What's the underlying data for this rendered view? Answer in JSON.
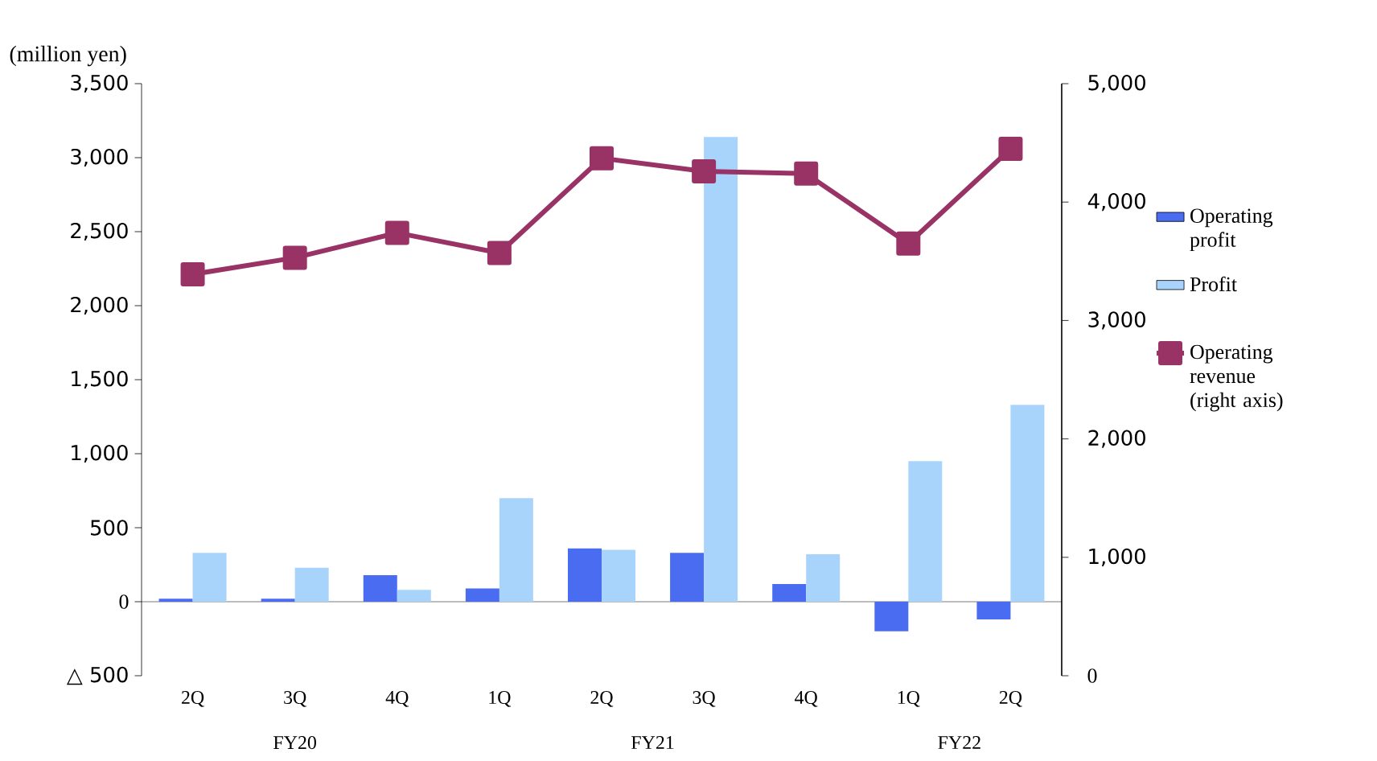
{
  "chart_data": {
    "type": "bar",
    "ylabel": "(million yen)",
    "categories": [
      "2Q",
      "3Q",
      "4Q",
      "1Q",
      "2Q",
      "3Q",
      "4Q",
      "1Q",
      "2Q"
    ],
    "series": [
      {
        "name": "Operating profit",
        "color": "#4a6cf0",
        "values": [
          20,
          20,
          180,
          90,
          360,
          330,
          120,
          -200,
          -120
        ]
      },
      {
        "name": "Profit",
        "color": "#a8d4fc",
        "values": [
          330,
          230,
          80,
          700,
          350,
          3140,
          320,
          950,
          1330
        ]
      },
      {
        "name": "Operating revenue (right axis)",
        "type": "line",
        "axis": "y2",
        "color": "#993366",
        "values": [
          3390,
          3530,
          3740,
          3570,
          4370,
          4260,
          4240,
          3650,
          4450
        ]
      }
    ],
    "ylim": [
      -500,
      3500
    ],
    "yticks": [
      {
        "value": -500,
        "label": "△ 500"
      },
      0,
      {
        "value": 500,
        "label": "500"
      },
      {
        "value": 1000,
        "label": "1,000"
      },
      {
        "value": 1500,
        "label": "1,500"
      },
      {
        "value": 2000,
        "label": "2,000"
      },
      {
        "value": 2500,
        "label": "2,500"
      },
      {
        "value": 3000,
        "label": "3,000"
      },
      {
        "value": 3500,
        "label": "3,500"
      }
    ],
    "y2lim": [
      0,
      5000
    ],
    "y2ticks": [
      0,
      {
        "value": 1000,
        "label": "1,000"
      },
      {
        "value": 2000,
        "label": "2,000"
      },
      {
        "value": 3000,
        "label": "3,000"
      },
      {
        "value": 4000,
        "label": "4,000"
      },
      {
        "value": 5000,
        "label": "5,000"
      }
    ],
    "annotations": [
      "FY20",
      "FY21",
      "FY22"
    ],
    "legend": "right",
    "marker": "square",
    "line_style": "solid"
  }
}
